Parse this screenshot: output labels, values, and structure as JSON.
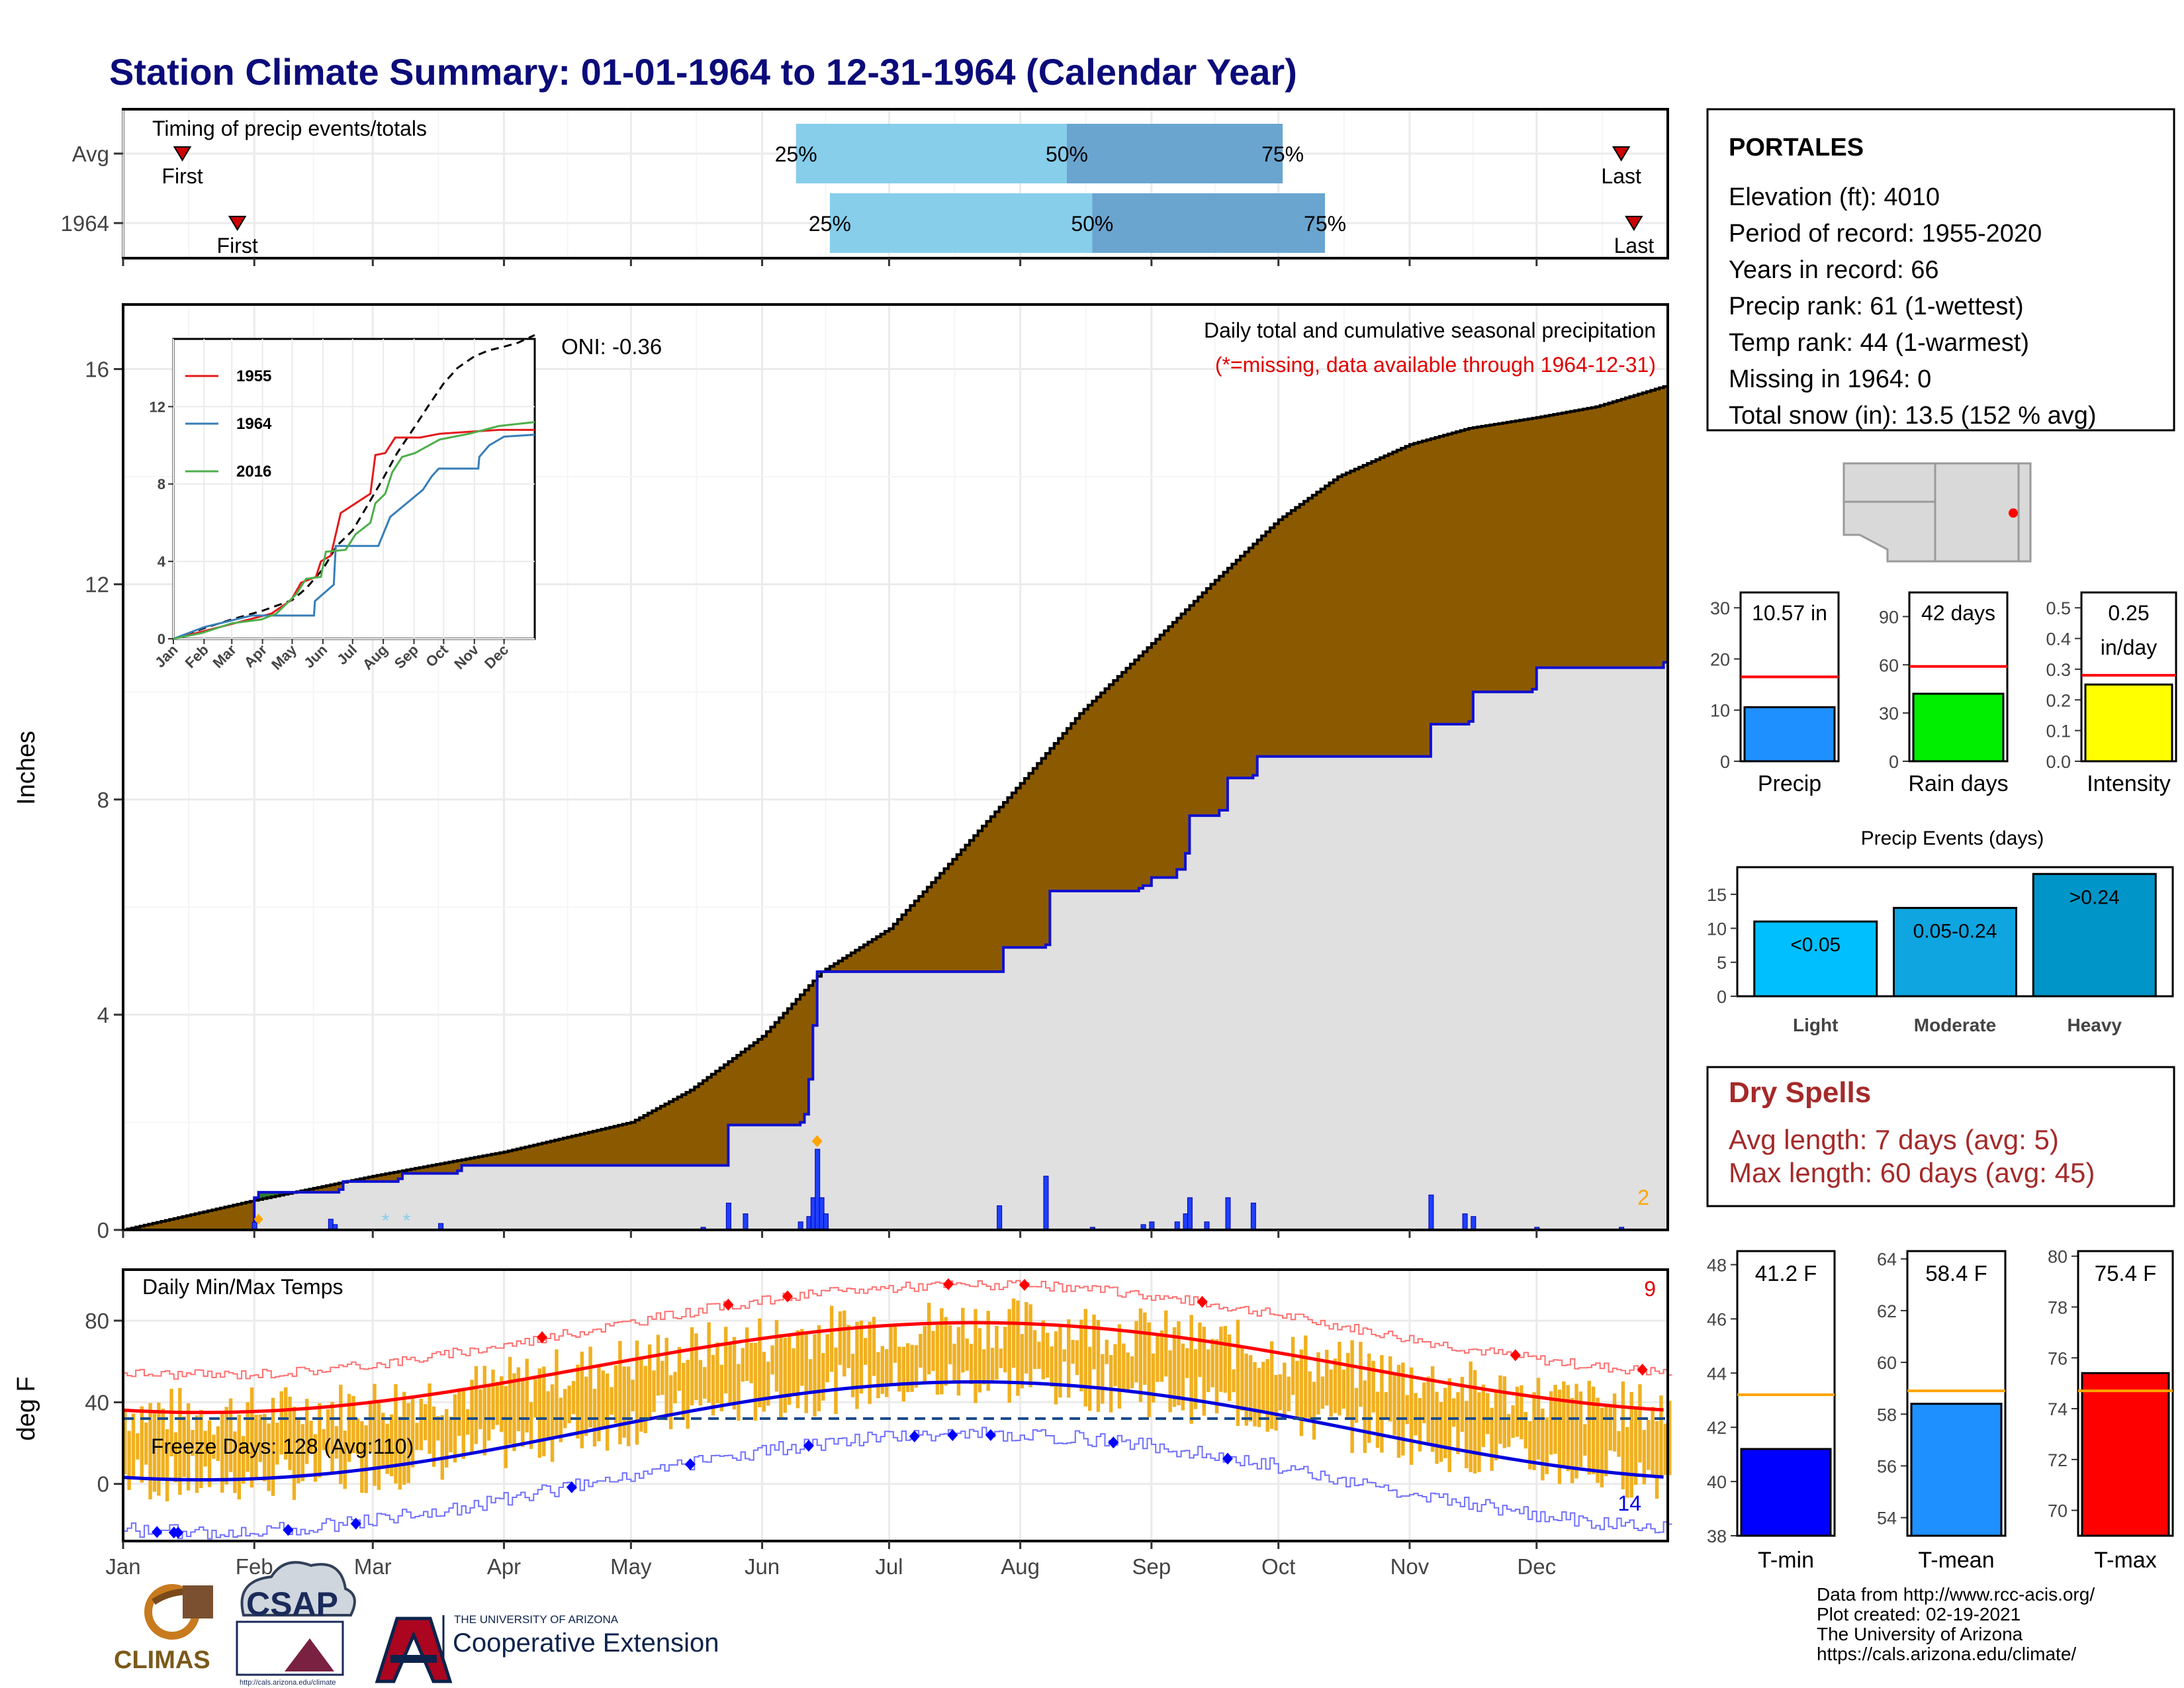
{
  "title": "Station Climate Summary: 01-01-1964 to 12-31-1964 (Calendar Year)",
  "station": {
    "name": "PORTALES",
    "lines": [
      "Elevation (ft): 4010",
      "Period of record: 1955-2020",
      "Years in record: 66",
      "Precip rank: 61 (1-wettest)",
      "Temp rank: 44 (1-warmest)",
      "Missing in 1964: 0",
      "Total snow (in): 13.5 (152 % avg)"
    ]
  },
  "months": [
    "Jan",
    "Feb",
    "Mar",
    "Apr",
    "May",
    "Jun",
    "Jul",
    "Aug",
    "Sep",
    "Oct",
    "Nov",
    "Dec"
  ],
  "timing": {
    "title": "Timing of precip events/totals",
    "rows": [
      {
        "label": "Avg",
        "first_doy": 15,
        "p25": 160,
        "p50": 224,
        "p75": 275,
        "last_doy": 355,
        "first_label": "First",
        "last_label": "Last",
        "p25_label": "25%",
        "p50_label": "50%",
        "p75_label": "75%"
      },
      {
        "label": "1964",
        "first_doy": 28,
        "p25": 168,
        "p50": 230,
        "p75": 285,
        "last_doy": 358,
        "first_label": "First",
        "last_label": "Last",
        "p25_label": "25%",
        "p50_label": "50%",
        "p75_label": "75%"
      }
    ],
    "colors": {
      "light": "#87ceeb",
      "dark": "#6aa5d0",
      "marker": "#cc0000"
    }
  },
  "precip": {
    "ylabel": "Inches",
    "yticks": [
      0,
      4,
      8,
      12,
      16
    ],
    "ylim": [
      0,
      17.2
    ],
    "annotation1": "Daily total and cumulative seasonal precipitation",
    "annotation2": "(*=missing, data available through 1964-12-31)",
    "oni": "ONI: -0.36",
    "corner_count": "2",
    "avg_cumulative": [
      [
        1,
        0
      ],
      [
        32,
        0.55
      ],
      [
        60,
        1.0
      ],
      [
        91,
        1.45
      ],
      [
        121,
        2.0
      ],
      [
        135,
        2.6
      ],
      [
        152,
        3.6
      ],
      [
        166,
        4.8
      ],
      [
        182,
        5.6
      ],
      [
        196,
        6.8
      ],
      [
        213,
        8.3
      ],
      [
        227,
        9.6
      ],
      [
        244,
        10.9
      ],
      [
        258,
        12.0
      ],
      [
        274,
        13.2
      ],
      [
        288,
        14.0
      ],
      [
        305,
        14.6
      ],
      [
        319,
        14.9
      ],
      [
        335,
        15.1
      ],
      [
        349,
        15.3
      ],
      [
        366,
        15.7
      ]
    ],
    "yr_cumulative": [
      [
        1,
        0
      ],
      [
        32,
        0.6
      ],
      [
        33,
        0.7
      ],
      [
        52,
        0.75
      ],
      [
        53,
        0.9
      ],
      [
        66,
        0.95
      ],
      [
        67,
        1.05
      ],
      [
        80,
        1.1
      ],
      [
        81,
        1.2
      ],
      [
        143,
        1.2
      ],
      [
        144,
        1.95
      ],
      [
        161,
        2.0
      ],
      [
        162,
        2.15
      ],
      [
        163,
        2.8
      ],
      [
        164,
        3.8
      ],
      [
        165,
        4.8
      ],
      [
        208,
        4.8
      ],
      [
        209,
        5.25
      ],
      [
        219,
        5.3
      ],
      [
        220,
        6.3
      ],
      [
        241,
        6.35
      ],
      [
        242,
        6.4
      ],
      [
        244,
        6.55
      ],
      [
        250,
        6.7
      ],
      [
        252,
        7.0
      ],
      [
        253,
        7.7
      ],
      [
        260,
        7.8
      ],
      [
        262,
        8.4
      ],
      [
        268,
        8.45
      ],
      [
        269,
        8.8
      ],
      [
        288,
        8.8
      ],
      [
        309,
        8.8
      ],
      [
        310,
        9.4
      ],
      [
        319,
        9.45
      ],
      [
        320,
        10.0
      ],
      [
        334,
        10.05
      ],
      [
        335,
        10.45
      ],
      [
        365,
        10.55
      ]
    ],
    "daily_bars": [
      [
        32,
        0.14
      ],
      [
        50,
        0.2
      ],
      [
        51,
        0.1
      ],
      [
        76,
        0.12
      ],
      [
        138,
        0.05
      ],
      [
        144,
        0.5
      ],
      [
        148,
        0.3
      ],
      [
        161,
        0.15
      ],
      [
        163,
        0.25
      ],
      [
        164,
        0.6
      ],
      [
        165,
        1.5
      ],
      [
        166,
        0.6
      ],
      [
        167,
        0.3
      ],
      [
        208,
        0.45
      ],
      [
        219,
        1.0
      ],
      [
        230,
        0.05
      ],
      [
        242,
        0.1
      ],
      [
        244,
        0.15
      ],
      [
        250,
        0.15
      ],
      [
        252,
        0.3
      ],
      [
        253,
        0.6
      ],
      [
        257,
        0.15
      ],
      [
        262,
        0.6
      ],
      [
        268,
        0.5
      ],
      [
        310,
        0.65
      ],
      [
        318,
        0.3
      ],
      [
        320,
        0.25
      ],
      [
        335,
        0.05
      ],
      [
        355,
        0.05
      ]
    ],
    "snow_marks_doy": [
      63,
      68
    ],
    "marker_doy": 165,
    "marker_value": 1.65,
    "colors": {
      "fill_above": "#8b5a00",
      "fill_below": "#e0e0e0",
      "fill_gain": "#2e7d32",
      "avg_line": "#000000",
      "yr_line": "#1010d0",
      "bar": "#1f3fff",
      "corner": "#ffa500",
      "annot2": "#e00000"
    }
  },
  "inset": {
    "yticks": [
      0,
      4,
      8,
      12
    ],
    "ylim": [
      0,
      15.5
    ],
    "series": [
      {
        "name": "1955",
        "color": "#e41a1c",
        "points": [
          [
            1,
            0
          ],
          [
            40,
            0.5
          ],
          [
            70,
            0.9
          ],
          [
            100,
            1.3
          ],
          [
            120,
            2.0
          ],
          [
            130,
            2.9
          ],
          [
            145,
            3.2
          ],
          [
            150,
            4.0
          ],
          [
            160,
            4.3
          ],
          [
            170,
            6.5
          ],
          [
            185,
            7.0
          ],
          [
            200,
            7.5
          ],
          [
            205,
            9.5
          ],
          [
            215,
            9.6
          ],
          [
            225,
            10.4
          ],
          [
            250,
            10.4
          ],
          [
            270,
            10.6
          ],
          [
            300,
            10.7
          ],
          [
            330,
            10.8
          ],
          [
            366,
            10.8
          ]
        ]
      },
      {
        "name": "1964",
        "color": "#377eb8",
        "points": [
          [
            1,
            0
          ],
          [
            32,
            0.6
          ],
          [
            80,
            1.2
          ],
          [
            143,
            1.2
          ],
          [
            144,
            1.95
          ],
          [
            163,
            2.8
          ],
          [
            165,
            4.8
          ],
          [
            208,
            4.8
          ],
          [
            220,
            6.3
          ],
          [
            253,
            7.7
          ],
          [
            262,
            8.4
          ],
          [
            269,
            8.8
          ],
          [
            309,
            8.8
          ],
          [
            310,
            9.4
          ],
          [
            320,
            10.0
          ],
          [
            335,
            10.45
          ],
          [
            366,
            10.55
          ]
        ]
      },
      {
        "name": "2016",
        "color": "#4daf4a",
        "points": [
          [
            1,
            0
          ],
          [
            30,
            0.3
          ],
          [
            60,
            0.8
          ],
          [
            90,
            1.0
          ],
          [
            105,
            1.3
          ],
          [
            125,
            2.3
          ],
          [
            135,
            3.1
          ],
          [
            150,
            3.2
          ],
          [
            155,
            4.5
          ],
          [
            175,
            4.6
          ],
          [
            185,
            5.4
          ],
          [
            200,
            6.0
          ],
          [
            205,
            7.0
          ],
          [
            215,
            7.5
          ],
          [
            222,
            8.6
          ],
          [
            232,
            9.4
          ],
          [
            245,
            9.6
          ],
          [
            270,
            10.3
          ],
          [
            300,
            10.6
          ],
          [
            330,
            11.0
          ],
          [
            366,
            11.2
          ]
        ]
      }
    ],
    "avg_points": [
      [
        1,
        0
      ],
      [
        32,
        0.55
      ],
      [
        60,
        1.0
      ],
      [
        91,
        1.45
      ],
      [
        121,
        2.0
      ],
      [
        135,
        2.6
      ],
      [
        152,
        3.6
      ],
      [
        166,
        4.8
      ],
      [
        182,
        5.6
      ],
      [
        196,
        6.8
      ],
      [
        213,
        8.3
      ],
      [
        227,
        9.6
      ],
      [
        244,
        10.9
      ],
      [
        258,
        12.0
      ],
      [
        274,
        13.2
      ],
      [
        288,
        14.0
      ],
      [
        305,
        14.6
      ],
      [
        319,
        14.9
      ],
      [
        335,
        15.1
      ],
      [
        349,
        15.3
      ],
      [
        366,
        15.7
      ]
    ]
  },
  "temps": {
    "title": "Daily Min/Max Temps",
    "ylabel": "deg F",
    "yticks": [
      0,
      40,
      80
    ],
    "ylim": [
      -28,
      105
    ],
    "freeze_label": "Freeze Days: 128 (Avg:110)",
    "freeze_line": 32,
    "hot_count": "9",
    "cold_count": "14",
    "colors": {
      "bars": "#f0b020",
      "avgmax": "#ff0000",
      "avgmin": "#0000dd",
      "recmax": "#ff7070",
      "recmin": "#7070ff",
      "freeze": "#1a4b8c"
    }
  },
  "summary_bars": [
    {
      "label": "Precip",
      "value_label": "10.57 in",
      "value": 10.57,
      "avg": 16.5,
      "ymax": 33,
      "yticks": [
        0,
        10,
        20,
        30
      ],
      "color": "#1e90ff"
    },
    {
      "label": "Rain days",
      "value_label": "42 days",
      "value": 42,
      "avg": 59,
      "ymax": 105,
      "yticks": [
        0,
        30,
        60,
        90
      ],
      "color": "#00ee00"
    },
    {
      "label": "Intensity",
      "value_label": "0.25\nin/day",
      "value": 0.25,
      "avg": 0.28,
      "ymax": 0.55,
      "yticks": [
        0.0,
        0.1,
        0.2,
        0.3,
        0.4,
        0.5
      ],
      "color": "#ffff00"
    }
  ],
  "events": {
    "title": "Precip Events (days)",
    "yticks": [
      0,
      5,
      10,
      15
    ],
    "ymax": 19,
    "bars": [
      {
        "category": "Light",
        "label": "<0.05",
        "value": 11,
        "color": "#00bfff"
      },
      {
        "category": "Moderate",
        "label": "0.05-0.24",
        "value": 13,
        "color": "#0fa5e0"
      },
      {
        "category": "Heavy",
        "label": ">0.24",
        "value": 18,
        "color": "#0095c8"
      }
    ]
  },
  "dry": {
    "title": "Dry Spells",
    "line1": "Avg length: 7 days (avg: 5)",
    "line2": "Max length: 60 days (avg: 45)",
    "color": "#a52a2a"
  },
  "temp_bars": [
    {
      "label": "T-min",
      "value_label": "41.2 F",
      "value": 41.2,
      "avg": 43.2,
      "ylim": [
        38,
        48.5
      ],
      "yticks": [
        38,
        40,
        42,
        44,
        46,
        48
      ],
      "color": "#0000ff"
    },
    {
      "label": "T-mean",
      "value_label": "58.4 F",
      "value": 58.4,
      "avg": 58.9,
      "ylim": [
        53.3,
        64.3
      ],
      "yticks": [
        54,
        56,
        58,
        60,
        62,
        64
      ],
      "color": "#1e90ff"
    },
    {
      "label": "T-max",
      "value_label": "75.4 F",
      "value": 75.4,
      "avg": 74.7,
      "ylim": [
        69,
        80.2
      ],
      "yticks": [
        70,
        72,
        74,
        76,
        78,
        80
      ],
      "color": "#ff0000"
    }
  ],
  "footer": {
    "lines": [
      "Data from http://www.rcc-acis.org/",
      "Plot created: 02-19-2021",
      "The University of Arizona",
      "https://cals.arizona.edu/climate/"
    ],
    "logo1": "CLIMAS",
    "logo2": "CSAP",
    "logo2_url": "http://cals.arizona.edu/climate",
    "ua_small": "THE UNIVERSITY OF ARIZONA",
    "ua_big": "Cooperative Extension"
  }
}
